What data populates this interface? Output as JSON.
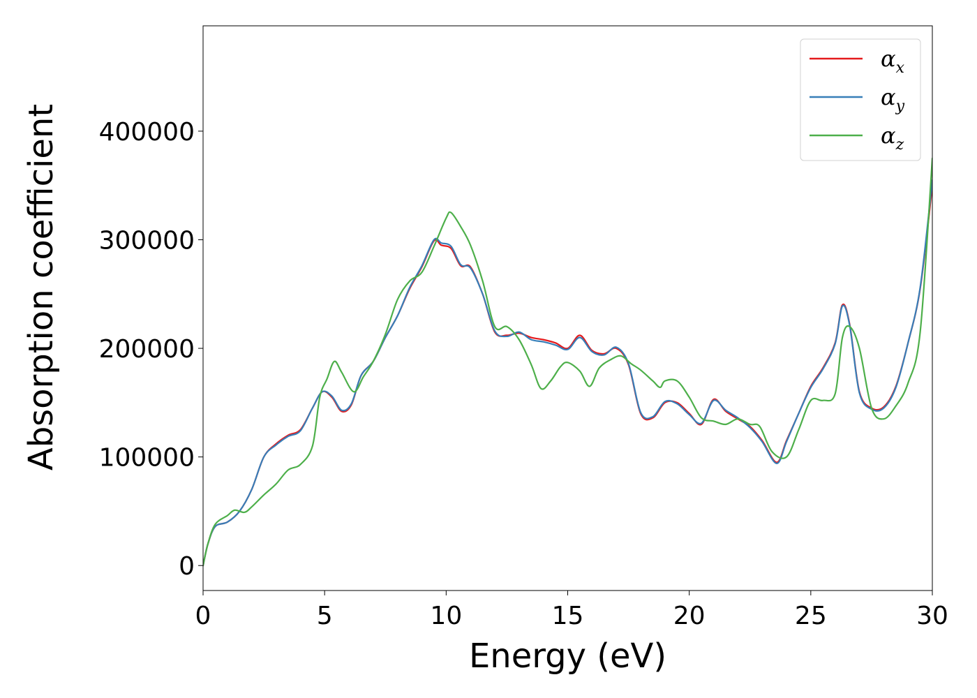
{
  "chart_data": {
    "type": "line",
    "xlabel": "Energy (eV)",
    "ylabel": "Absorption coefficient",
    "xlim": [
      0,
      30
    ],
    "ylim": [
      -23000,
      497000
    ],
    "xticks": [
      0,
      5,
      10,
      15,
      20,
      25,
      30
    ],
    "yticks": [
      0,
      100000,
      200000,
      300000,
      400000
    ],
    "xtick_labels": [
      "0",
      "5",
      "10",
      "15",
      "20",
      "25",
      "30"
    ],
    "ytick_labels": [
      "0",
      "100000",
      "200000",
      "300000",
      "400000"
    ],
    "grid": false,
    "legend_position": "top-right",
    "series": [
      {
        "name": "α_x",
        "label_main": "α",
        "label_sub": "x",
        "color": "#e41a1c",
        "x": [
          0,
          0.2,
          0.5,
          1,
          1.5,
          2,
          2.5,
          3,
          3.5,
          4,
          4.5,
          4.9,
          5.3,
          5.7,
          6.1,
          6.5,
          7,
          7.5,
          8,
          8.5,
          9,
          9.5,
          9.8,
          10.2,
          10.6,
          11,
          11.5,
          12,
          12.5,
          13,
          13.5,
          14,
          14.5,
          15,
          15.5,
          16,
          16.5,
          17,
          17.5,
          18,
          18.5,
          19,
          19.5,
          20,
          20.5,
          21,
          21.5,
          22,
          22.5,
          23,
          23.6,
          24,
          24.5,
          25,
          25.5,
          26,
          26.3,
          26.6,
          27,
          27.5,
          28,
          28.5,
          29,
          29.5,
          30
        ],
        "y": [
          0,
          20000,
          36000,
          40000,
          50000,
          70000,
          100000,
          112000,
          120000,
          125000,
          145000,
          160000,
          155000,
          142000,
          148000,
          175000,
          188000,
          210000,
          230000,
          255000,
          275000,
          299000,
          295000,
          292000,
          276000,
          275000,
          250000,
          215000,
          212000,
          214000,
          210000,
          208000,
          205000,
          200000,
          212000,
          198000,
          195000,
          200000,
          185000,
          140000,
          136000,
          150000,
          150000,
          140000,
          130000,
          153000,
          142000,
          135000,
          128000,
          115000,
          95000,
          115000,
          140000,
          165000,
          182000,
          205000,
          240000,
          222000,
          160000,
          145000,
          146000,
          165000,
          205000,
          255000,
          350000
        ]
      },
      {
        "name": "α_y",
        "label_main": "α",
        "label_sub": "y",
        "color": "#377eb8",
        "x": [
          0,
          0.2,
          0.5,
          1,
          1.5,
          2,
          2.5,
          3,
          3.5,
          4,
          4.5,
          4.9,
          5.3,
          5.7,
          6.1,
          6.5,
          7,
          7.5,
          8,
          8.5,
          9,
          9.5,
          9.8,
          10.2,
          10.6,
          11,
          11.5,
          12,
          12.5,
          13,
          13.5,
          14,
          14.5,
          15,
          15.5,
          16,
          16.5,
          17,
          17.5,
          18,
          18.5,
          19,
          19.5,
          20,
          20.5,
          21,
          21.5,
          22,
          22.5,
          23,
          23.6,
          24,
          24.5,
          25,
          25.5,
          26,
          26.3,
          26.6,
          27,
          27.5,
          28,
          28.5,
          29,
          29.5,
          30
        ],
        "y": [
          0,
          20000,
          36000,
          40000,
          50000,
          70000,
          100000,
          111000,
          119000,
          124000,
          145000,
          160000,
          156000,
          143000,
          149000,
          175000,
          188000,
          210000,
          230000,
          256000,
          276000,
          300000,
          297000,
          294000,
          277000,
          274000,
          250000,
          216000,
          211000,
          215000,
          208000,
          206000,
          203000,
          199000,
          210000,
          197000,
          194000,
          201000,
          186000,
          141000,
          137000,
          151000,
          149000,
          139000,
          131000,
          152000,
          143000,
          136000,
          127000,
          114000,
          94000,
          114000,
          140000,
          164000,
          181000,
          204000,
          239000,
          221000,
          159000,
          144000,
          145000,
          164000,
          205000,
          256000,
          355000
        ]
      },
      {
        "name": "α_z",
        "label_main": "α",
        "label_sub": "z",
        "color": "#4daf4a",
        "x": [
          0,
          0.2,
          0.5,
          1,
          1.3,
          1.7,
          2,
          2.5,
          3,
          3.5,
          4,
          4.5,
          4.8,
          5.1,
          5.4,
          5.7,
          6.2,
          6.6,
          7,
          7.5,
          8,
          8.5,
          9,
          9.5,
          10,
          10.2,
          10.6,
          11,
          11.5,
          12,
          12.5,
          13,
          13.5,
          13.9,
          14.3,
          14.7,
          15,
          15.5,
          15.9,
          16.3,
          16.8,
          17.2,
          17.6,
          18,
          18.5,
          18.8,
          19,
          19.5,
          20,
          20.5,
          21,
          21.5,
          22,
          22.5,
          22.9,
          23.4,
          24,
          24.5,
          25,
          25.5,
          26,
          26.3,
          26.6,
          27,
          27.5,
          28,
          28.5,
          29,
          29.5,
          30
        ],
        "y": [
          0,
          20000,
          38000,
          46000,
          51000,
          49000,
          54000,
          65000,
          75000,
          88000,
          93000,
          110000,
          155000,
          172000,
          188000,
          178000,
          160000,
          174000,
          188000,
          213000,
          245000,
          262000,
          270000,
          294000,
          320000,
          325000,
          312000,
          295000,
          262000,
          220000,
          220000,
          208000,
          185000,
          163000,
          170000,
          183000,
          187000,
          179000,
          165000,
          182000,
          190000,
          193000,
          186000,
          180000,
          170000,
          164000,
          170000,
          170000,
          155000,
          136000,
          133000,
          130000,
          135000,
          130000,
          128000,
          105000,
          100000,
          125000,
          152000,
          152000,
          158000,
          210000,
          220000,
          200000,
          145000,
          135000,
          147000,
          168000,
          215000,
          375000
        ]
      }
    ]
  }
}
